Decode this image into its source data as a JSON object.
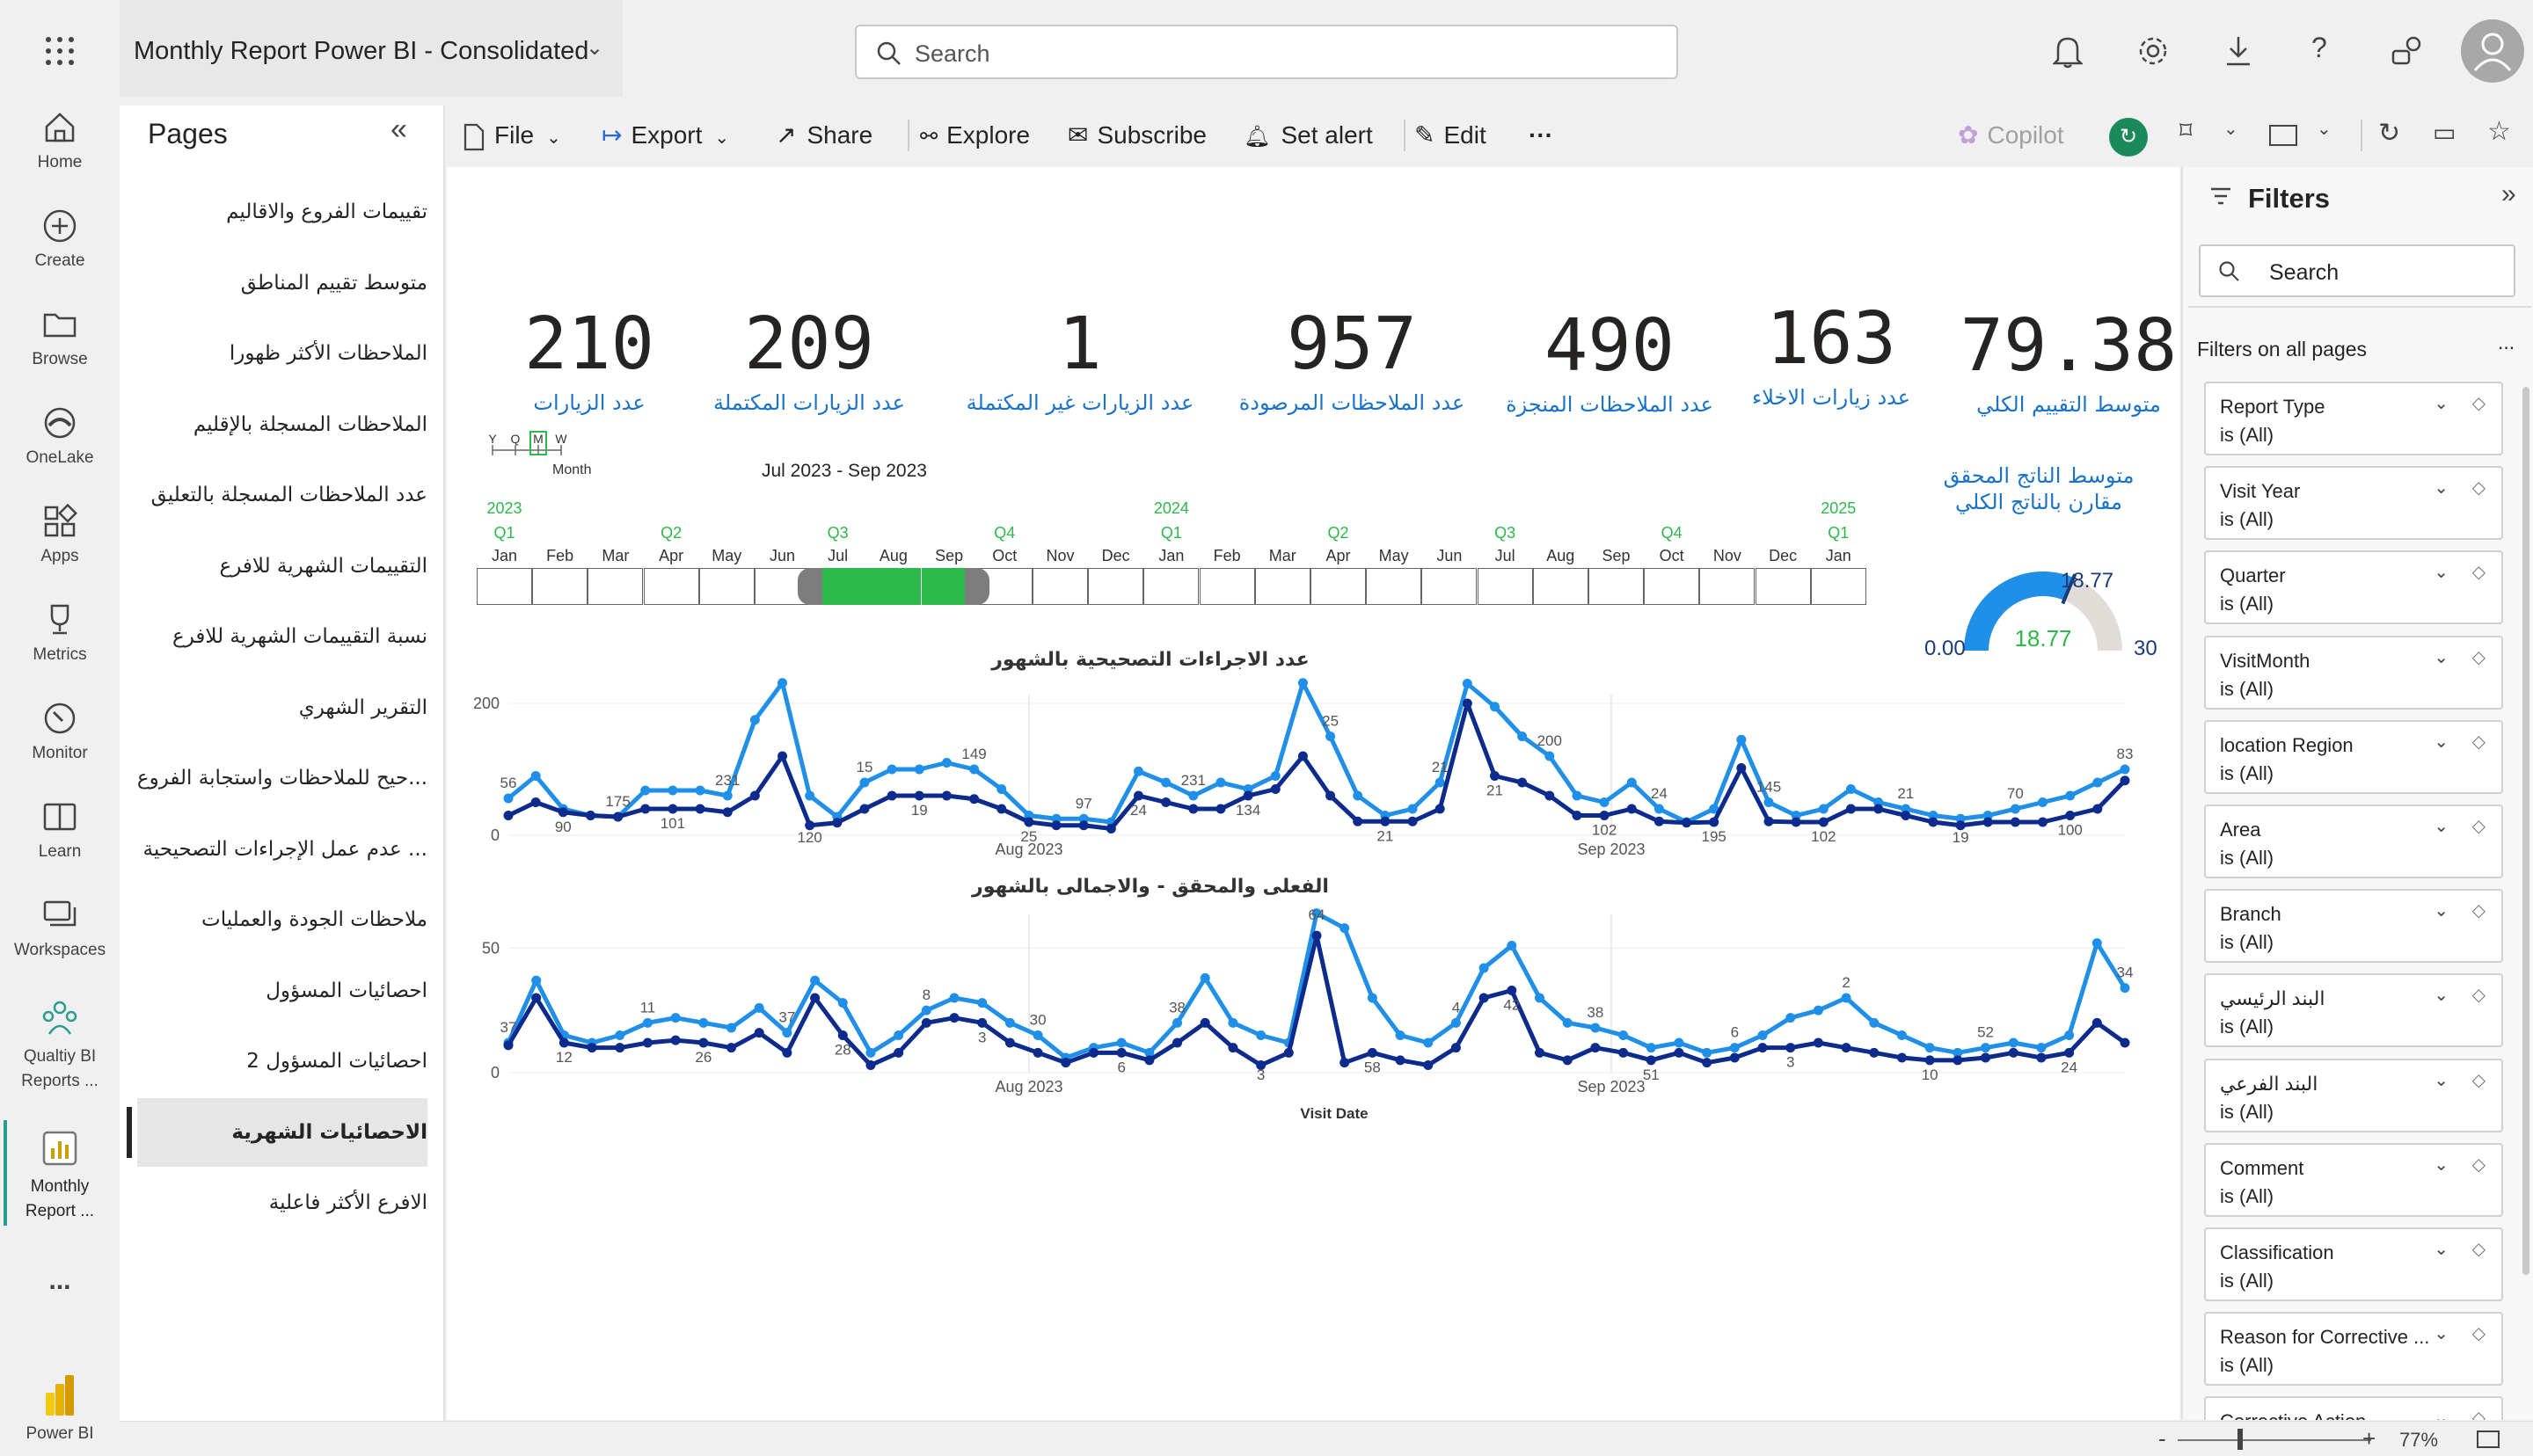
{
  "app": {
    "report_title": "Monthly Report Power BI - Consolidated",
    "search_placeholder": "Search"
  },
  "rail": [
    {
      "label": "Home",
      "icon": "home-icon"
    },
    {
      "label": "Create",
      "icon": "plus-circle-icon"
    },
    {
      "label": "Browse",
      "icon": "folder-icon"
    },
    {
      "label": "OneLake",
      "icon": "onelake-icon"
    },
    {
      "label": "Apps",
      "icon": "apps-icon"
    },
    {
      "label": "Metrics",
      "icon": "trophy-icon"
    },
    {
      "label": "Monitor",
      "icon": "monitor-icon"
    },
    {
      "label": "Learn",
      "icon": "book-icon"
    },
    {
      "label": "Workspaces",
      "icon": "workspaces-icon"
    },
    {
      "label1": "Qualtiy BI",
      "label2": "Reports ...",
      "icon": "people-icon"
    },
    {
      "label1": "Monthly",
      "label2": "Report ...",
      "icon": "report-icon"
    },
    {
      "label": "...",
      "icon": "more-icon"
    },
    {
      "label": "Power BI",
      "icon": "powerbi-logo"
    }
  ],
  "pages": {
    "header": "Pages",
    "items": [
      "تقييمات الفروع والاقاليم",
      "متوسط تقييم المناطق",
      "الملاحظات الأكثر ظهورا",
      "الملاحظات المسجلة بالإقليم",
      "عدد الملاحظات المسجلة بالتعليق",
      "التقييمات الشهرية للافرع",
      "نسبة التقييمات الشهرية للافرع",
      "التقرير الشهري",
      "...حيح للملاحظات واستجابة الفروع",
      "... عدم عمل الإجراءات التصحيحية",
      "ملاحظات الجودة والعمليات",
      "احصائيات المسؤول",
      "احصائيات المسؤول 2",
      "الاحصائيات الشهرية",
      "الافرع الأكثر فاعلية"
    ],
    "active_index": 13
  },
  "toolbar": {
    "file": "File",
    "export": "Export",
    "share": "Share",
    "explore": "Explore",
    "subscribe": "Subscribe",
    "set_alert": "Set alert",
    "edit": "Edit",
    "more": "···",
    "copilot": "Copilot"
  },
  "kpis": [
    {
      "value": "210",
      "label": "عدد الزيارات"
    },
    {
      "value": "209",
      "label": "عدد الزيارات المكتملة"
    },
    {
      "value": "1",
      "label": "عدد الزيارات غير المكتملة"
    },
    {
      "value": "957",
      "label": "عدد الملاحظات المرصودة"
    },
    {
      "value": "490",
      "label": "عدد الملاحظات المنجزة"
    },
    {
      "value": "163",
      "label": "عدد زيارات الاخلاء"
    },
    {
      "value": "79.38",
      "label": "متوسط التقييم الكلي"
    }
  ],
  "timeline": {
    "granularity": [
      "Y",
      "Q",
      "M",
      "W"
    ],
    "granularity_selected": "M",
    "granularity_label": "Month",
    "range_label": "Jul 2023 - Sep 2023",
    "years": [
      "2023",
      "2024",
      "2025"
    ],
    "quarters": [
      "Q1",
      "Q2",
      "Q3",
      "Q4",
      "Q1",
      "Q2",
      "Q3",
      "Q4",
      "Q1"
    ],
    "months": [
      "Jan",
      "Feb",
      "Mar",
      "Apr",
      "May",
      "Jun",
      "Jul",
      "Aug",
      "Sep",
      "Oct",
      "Nov",
      "Dec",
      "Jan",
      "Feb",
      "Mar",
      "Apr",
      "May",
      "Jun",
      "Jul",
      "Aug",
      "Sep",
      "Oct",
      "Nov",
      "Dec",
      "Jan"
    ],
    "selected_months": [
      6,
      7,
      8
    ]
  },
  "gauge": {
    "title_line1": "متوسط الناتج المحقق",
    "title_line2": "مقارن بالناتج الكلي",
    "value": 18.77,
    "min": "0.00",
    "max": "30",
    "target": "18.77",
    "center": "18.77",
    "colors": {
      "fill": "#1f8fe8",
      "track": "#e0ddd8",
      "center_text": "#2db84a"
    }
  },
  "chart_data": [
    {
      "type": "line",
      "title": "عدد الاجراءات التصحيحية بالشهور",
      "x_tick_labels": [
        "Aug 2023",
        "Sep 2023"
      ],
      "ylim": [
        0,
        200
      ],
      "y_ticks": [
        0,
        200
      ],
      "grid": true,
      "series": [
        {
          "color": "#1f8fe8",
          "values": [
            56,
            90,
            40,
            30,
            28,
            68,
            68,
            68,
            60,
            175,
            231,
            60,
            28,
            80,
            100,
            100,
            110,
            100,
            70,
            30,
            25,
            25,
            20,
            97,
            80,
            60,
            80,
            70,
            90,
            231,
            150,
            60,
            30,
            40,
            80,
            230,
            195,
            150,
            120,
            60,
            50,
            80,
            40,
            20,
            40,
            145,
            50,
            30,
            40,
            70,
            50,
            40,
            30,
            25,
            30,
            40,
            50,
            60,
            80,
            100
          ]
        },
        {
          "color": "#0d2b8c",
          "values": [
            30,
            50,
            35,
            30,
            28,
            40,
            40,
            40,
            35,
            60,
            120,
            15,
            19,
            40,
            60,
            60,
            60,
            55,
            40,
            20,
            15,
            15,
            10,
            60,
            50,
            40,
            40,
            60,
            70,
            120,
            60,
            21,
            21,
            21,
            40,
            200,
            90,
            80,
            60,
            30,
            30,
            40,
            21,
            19,
            20,
            102,
            21,
            20,
            20,
            40,
            40,
            30,
            20,
            15,
            20,
            20,
            20,
            30,
            40,
            83
          ]
        }
      ],
      "data_labels": [
        "56",
        "90",
        "175",
        "101",
        "231",
        "120",
        "15",
        "19",
        "149",
        "25",
        "97",
        "24",
        "231",
        "134",
        "25",
        "21",
        "21",
        "21",
        "200",
        "102",
        "24",
        "195",
        "145",
        "102",
        "21",
        "19",
        "70",
        "100",
        "83"
      ],
      "xlabel": ""
    },
    {
      "type": "line",
      "title": "الفعلى والمحقق - والاجمالى بالشهور",
      "x_tick_labels": [
        "Aug 2023",
        "Sep 2023"
      ],
      "ylim": [
        0,
        60
      ],
      "y_ticks": [
        0,
        50
      ],
      "grid": true,
      "series": [
        {
          "color": "#1f8fe8",
          "values": [
            12,
            37,
            15,
            12,
            15,
            20,
            22,
            20,
            18,
            26,
            16,
            37,
            28,
            8,
            15,
            25,
            30,
            28,
            20,
            15,
            6,
            10,
            12,
            8,
            20,
            38,
            20,
            15,
            12,
            64,
            58,
            30,
            15,
            12,
            20,
            42,
            51,
            30,
            20,
            18,
            15,
            10,
            12,
            8,
            10,
            15,
            22,
            25,
            30,
            20,
            15,
            10,
            8,
            10,
            12,
            10,
            15,
            52,
            34
          ]
        },
        {
          "color": "#0d2b8c",
          "values": [
            11,
            30,
            12,
            10,
            10,
            12,
            13,
            12,
            10,
            16,
            8,
            30,
            15,
            3,
            8,
            20,
            22,
            20,
            12,
            8,
            4,
            8,
            8,
            5,
            12,
            20,
            10,
            3,
            8,
            55,
            4,
            8,
            5,
            3,
            10,
            30,
            33,
            8,
            5,
            10,
            8,
            5,
            8,
            4,
            6,
            10,
            10,
            12,
            10,
            8,
            6,
            5,
            5,
            6,
            8,
            6,
            8,
            20,
            12
          ]
        }
      ],
      "data_labels": [
        "37",
        "12",
        "11",
        "26",
        "37",
        "28",
        "8",
        "3",
        "30",
        "6",
        "38",
        "3",
        "64",
        "58",
        "4",
        "42",
        "38",
        "51",
        "6",
        "3",
        "2",
        "10",
        "52",
        "24",
        "34"
      ],
      "xlabel": "Visit Date"
    }
  ],
  "filters": {
    "title": "Filters",
    "search_placeholder": "Search",
    "section": "Filters on all pages",
    "section_more": "...",
    "cards": [
      {
        "title": "Report Type",
        "value": "is (All)"
      },
      {
        "title": "Visit Year",
        "value": "is (All)"
      },
      {
        "title": "Quarter",
        "value": "is (All)"
      },
      {
        "title": "VisitMonth",
        "value": "is (All)"
      },
      {
        "title": "location Region",
        "value": "is (All)"
      },
      {
        "title": "Area",
        "value": "is (All)"
      },
      {
        "title": "Branch",
        "value": "is (All)"
      },
      {
        "title": "البند الرئيسي",
        "value": "is (All)"
      },
      {
        "title": "البند الفرعي",
        "value": "is (All)"
      },
      {
        "title": "Comment",
        "value": "is (All)"
      },
      {
        "title": "Classification",
        "value": "is (All)"
      },
      {
        "title": "Reason for Corrective ...",
        "value": "is (All)"
      },
      {
        "title": "Corrective Action",
        "value": ""
      }
    ]
  },
  "status": {
    "zoom": "77%"
  }
}
